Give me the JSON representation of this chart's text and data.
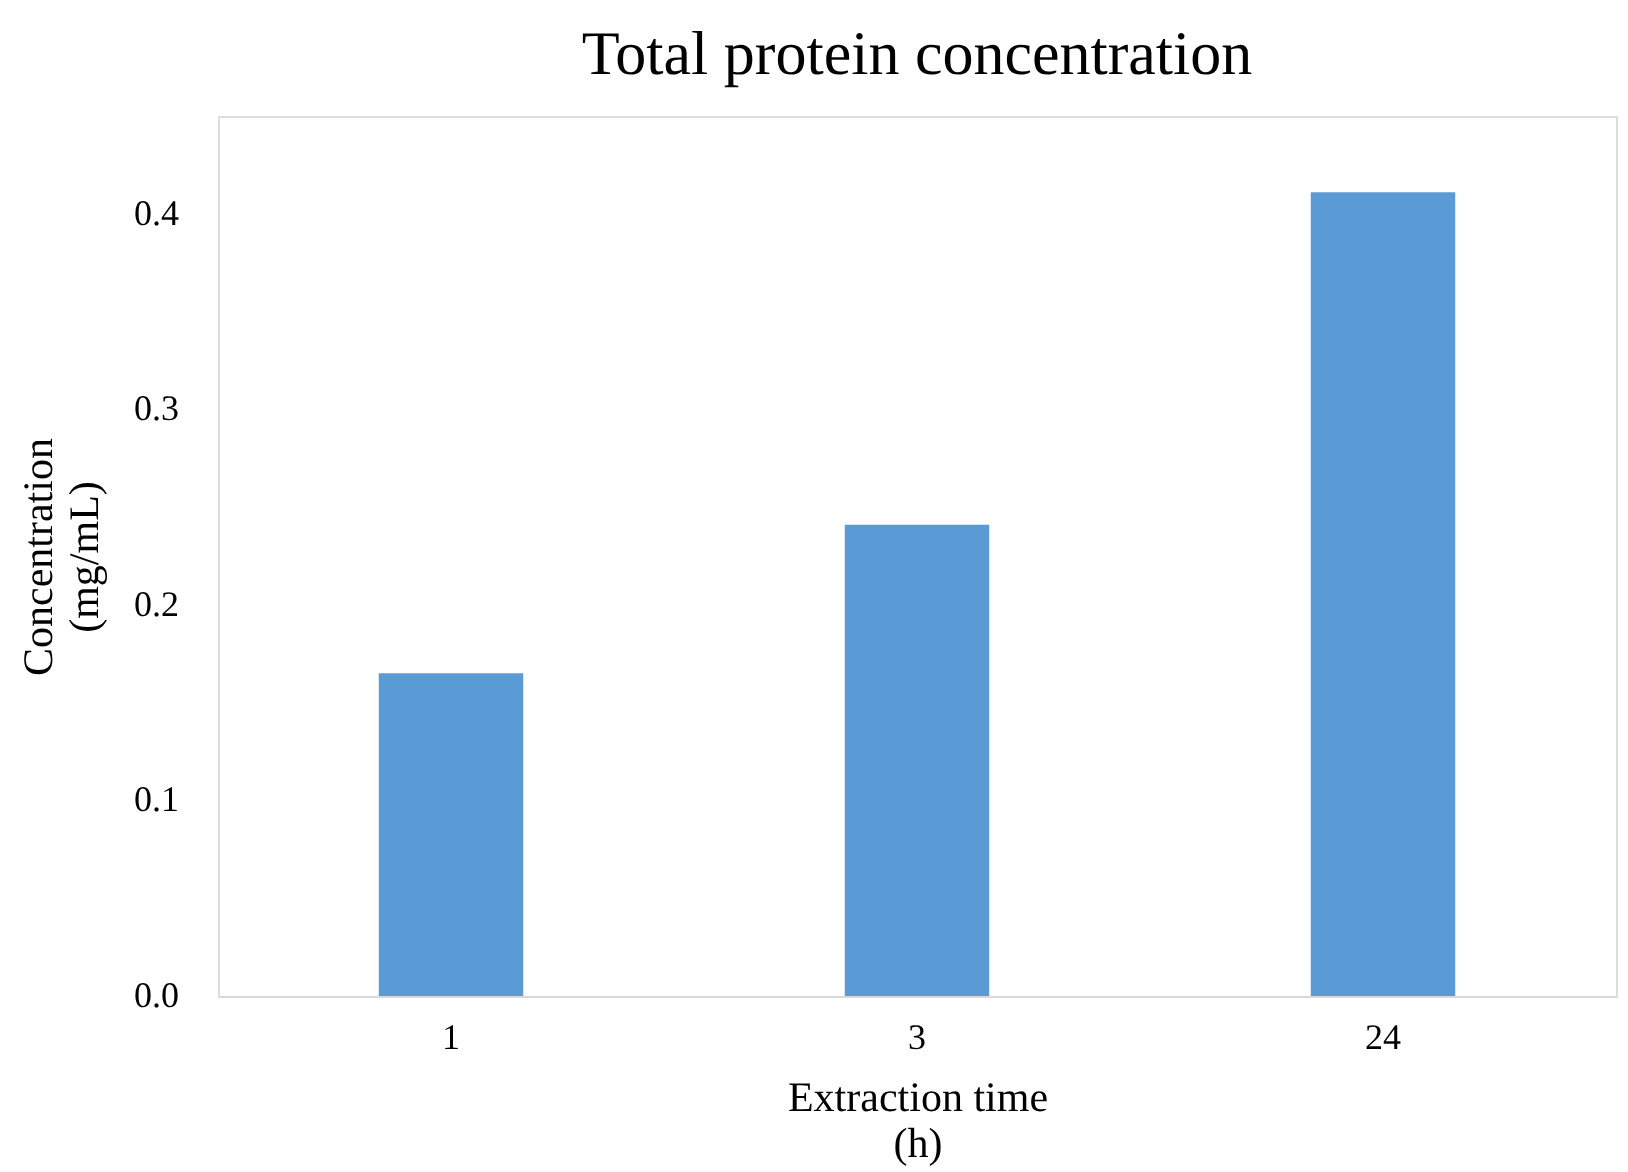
{
  "chart_data": {
    "type": "bar",
    "title": "Total protein concentration",
    "xlabel": "Extraction time\n(h)",
    "ylabel": "Concentration\n(mg/mL)",
    "categories": [
      "1",
      "3",
      "24"
    ],
    "values": [
      0.165,
      0.241,
      0.411
    ],
    "color": "#5b9bd5",
    "ylim": [
      0,
      0.45
    ],
    "yticks": [
      {
        "value": 0,
        "label": "0.0"
      },
      0.1,
      0.2,
      0.3,
      0.4
    ],
    "grid": false
  }
}
